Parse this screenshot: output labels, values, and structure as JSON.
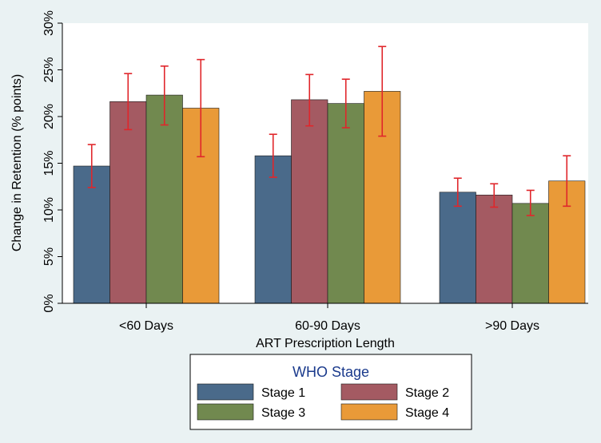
{
  "chart_data": {
    "type": "bar",
    "categories": [
      "<60 Days",
      "60-90 Days",
      ">90 Days"
    ],
    "xlabel": "ART Prescription Length",
    "ylabel": "Change in Retention (% points)",
    "ylim": [
      0,
      30
    ],
    "yticks": [
      0,
      5,
      10,
      15,
      20,
      25,
      30
    ],
    "ytick_labels": [
      "0%",
      "5%",
      "10%",
      "15%",
      "20%",
      "25%",
      "30%"
    ],
    "grid": false,
    "legend": {
      "title": "WHO Stage",
      "placement": "bottom",
      "entries": [
        "Stage 1",
        "Stage 2",
        "Stage 3",
        "Stage 4"
      ]
    },
    "series": [
      {
        "name": "Stage 1",
        "color": "#4a6a8a",
        "values": [
          14.7,
          15.8,
          11.9
        ],
        "ci_low": [
          12.4,
          13.5,
          10.4
        ],
        "ci_high": [
          17.0,
          18.1,
          13.4
        ]
      },
      {
        "name": "Stage 2",
        "color": "#a45a62",
        "values": [
          21.6,
          21.8,
          11.6
        ],
        "ci_low": [
          18.6,
          19.0,
          10.3
        ],
        "ci_high": [
          24.6,
          24.5,
          12.8
        ]
      },
      {
        "name": "Stage 3",
        "color": "#71894f",
        "values": [
          22.3,
          21.4,
          10.7
        ],
        "ci_low": [
          19.1,
          18.8,
          9.4
        ],
        "ci_high": [
          25.4,
          24.0,
          12.1
        ]
      },
      {
        "name": "Stage 4",
        "color": "#e99a38",
        "values": [
          20.9,
          22.7,
          13.1
        ],
        "ci_low": [
          15.7,
          17.9,
          10.4
        ],
        "ci_high": [
          26.1,
          27.5,
          15.8
        ]
      }
    ],
    "errorbar_color": "#e0262b"
  }
}
